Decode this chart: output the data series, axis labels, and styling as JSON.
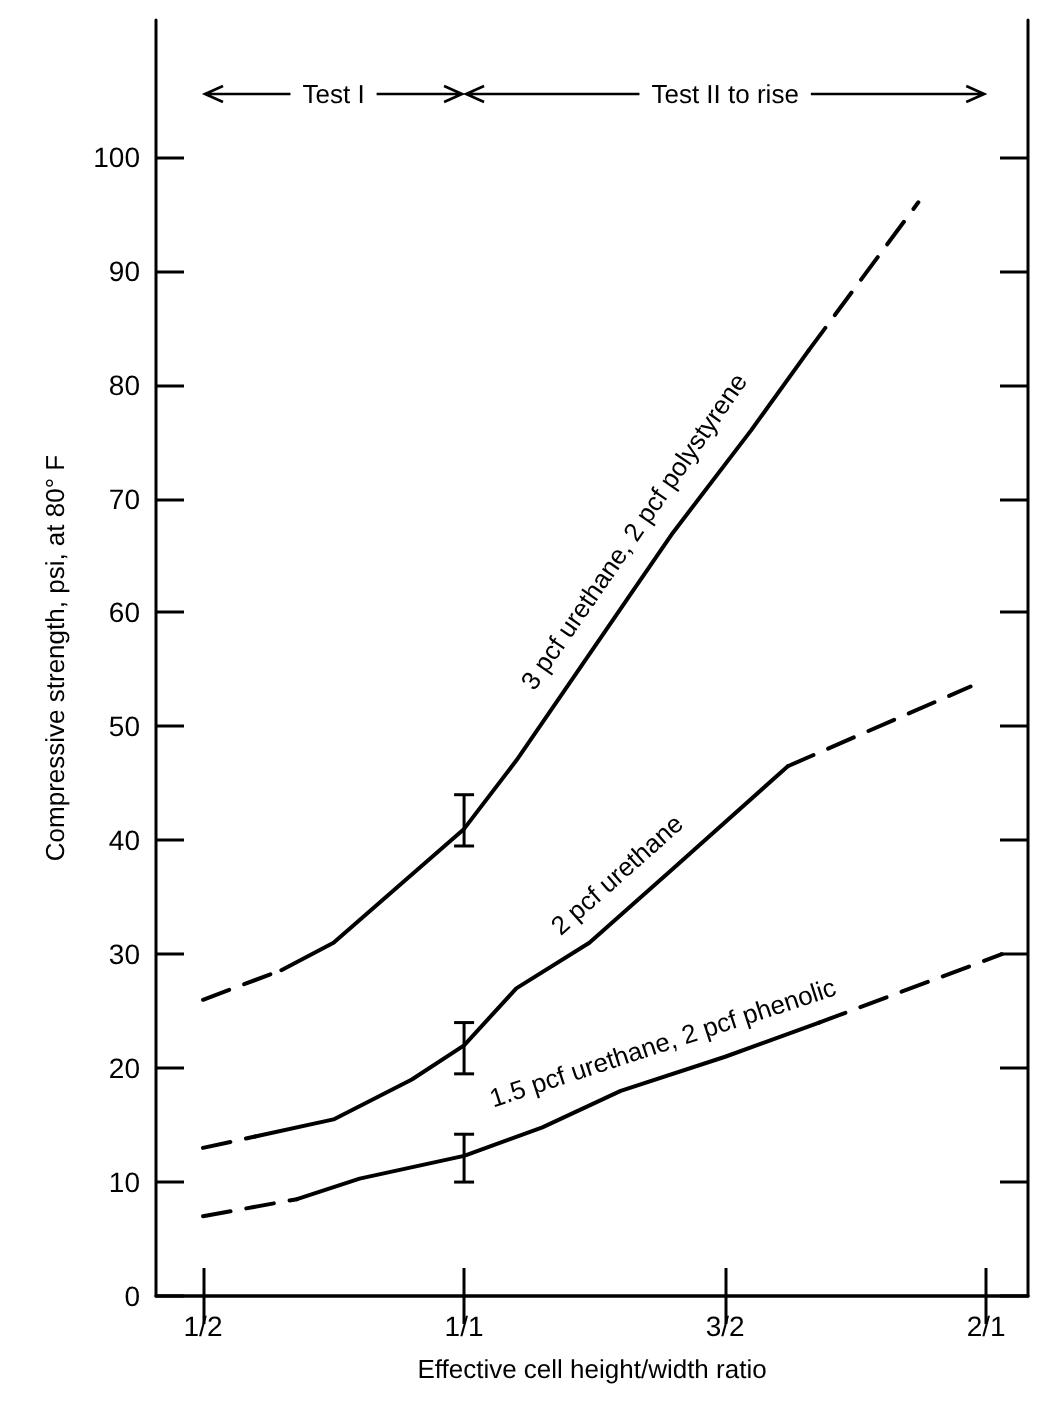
{
  "chart_data": {
    "type": "line",
    "xlabel": "Effective cell height/width ratio",
    "ylabel": "Compressive strength, psi, at 80° F",
    "xlim": [
      0.41,
      2.08
    ],
    "ylim": [
      0,
      112
    ],
    "xticks": [
      {
        "value": 0.5,
        "label": "1/2"
      },
      {
        "value": 1,
        "label": "1/1"
      },
      {
        "value": 1.5,
        "label": "3/2"
      },
      {
        "value": 2,
        "label": "2/1"
      }
    ],
    "yticks": [
      0,
      10,
      20,
      30,
      40,
      50,
      60,
      70,
      80,
      90,
      100
    ],
    "grid": false,
    "legend": false,
    "marker": "none",
    "series": [
      {
        "name": "3 pcf urethane, 2 pcf polystyrene",
        "color": "#000000",
        "line_style": "solid",
        "x": [
          0.65,
          0.75,
          0.85,
          1.0,
          1.1,
          1.25,
          1.4,
          1.55,
          1.66
        ],
        "values": [
          28.6,
          31,
          35,
          41,
          47,
          57,
          67,
          76,
          83
        ],
        "errors": [
          null,
          null,
          null,
          [
            39.5,
            44
          ],
          null,
          null,
          null,
          null,
          null
        ]
      },
      {
        "color": "#000000",
        "line_style": "dashed",
        "x": [
          0.5,
          0.65,
          1.0,
          1.66,
          1.87
        ],
        "values": [
          26,
          28.6,
          null,
          83,
          96
        ]
      },
      {
        "name": "2 pcf urethane",
        "color": "#000000",
        "line_style": "solid",
        "x": [
          0.6,
          0.75,
          0.9,
          1.0,
          1.1,
          1.24,
          1.4,
          1.62
        ],
        "values": [
          14,
          15.5,
          19,
          22,
          27,
          31,
          37.5,
          46.5
        ],
        "errors": [
          null,
          null,
          null,
          [
            19.5,
            24
          ],
          null,
          null,
          null,
          null
        ]
      },
      {
        "color": "#000000",
        "line_style": "dashed",
        "x": [
          0.5,
          0.6,
          1.0,
          1.62,
          1.97
        ],
        "values": [
          13,
          14,
          null,
          46.5,
          53.5
        ]
      },
      {
        "name": "1.5 pcf urethane, 2 pcf phenolic",
        "color": "#000000",
        "line_style": "solid",
        "x": [
          0.68,
          0.8,
          1.0,
          1.15,
          1.3,
          1.5,
          1.68
        ],
        "values": [
          8.5,
          10.3,
          12.3,
          14.8,
          18,
          21,
          24
        ],
        "errors": [
          null,
          null,
          [
            10,
            14.2
          ],
          null,
          null,
          null,
          null
        ]
      },
      {
        "color": "#000000",
        "line_style": "dashed",
        "x": [
          0.5,
          0.68,
          1.0,
          1.68,
          2.03
        ],
        "values": [
          7,
          8.5,
          null,
          24,
          30
        ]
      }
    ],
    "annotations": [
      "Test I",
      "Test II to rise"
    ]
  }
}
